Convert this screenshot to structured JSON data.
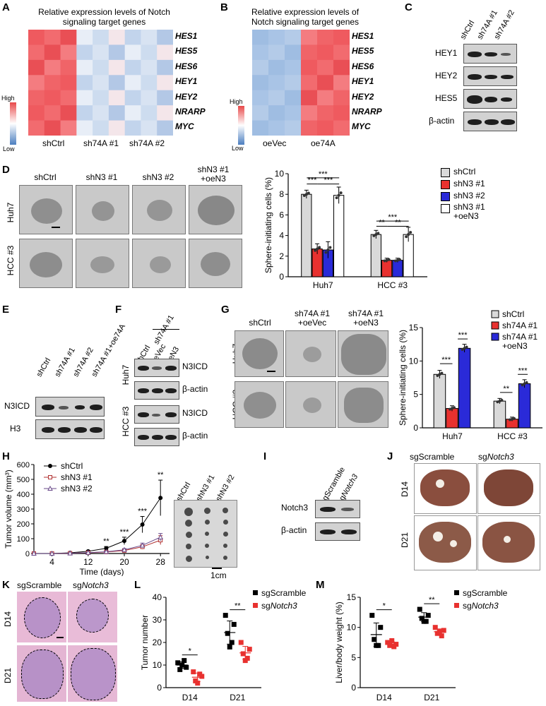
{
  "panels": {
    "A": {
      "label": "A",
      "title_line1": "Relative expression levels of Notch",
      "title_line2": "signaling target genes",
      "genes": [
        "HES1",
        "HES5",
        "HES6",
        "HEY1",
        "HEY2",
        "NRARP",
        "MYC"
      ],
      "groups": [
        "shCtrl",
        "sh74A #1",
        "sh74A #2"
      ],
      "legend_high": "High",
      "legend_low": "Low"
    },
    "B": {
      "label": "B",
      "title_line1": "Relative expression levels of",
      "title_line2": "Notch signaling target genes",
      "genes": [
        "HES1",
        "HES5",
        "HES6",
        "HEY1",
        "HEY2",
        "NRARP",
        "MYC"
      ],
      "groups": [
        "oeVec",
        "oe74A"
      ],
      "legend_high": "High",
      "legend_low": "Low"
    },
    "C": {
      "label": "C",
      "lanes": [
        "shCtrl",
        "sh74A #1",
        "sh74A #2"
      ],
      "rows": [
        "HEY1",
        "HEY2",
        "HES5",
        "β-actin"
      ]
    },
    "D": {
      "label": "D",
      "columns": [
        "shCtrl",
        "shN3 #1",
        "shN3 #2",
        "shN3 #1\n+oeN3"
      ],
      "col3_line1": "shN3 #1",
      "col3_line2": "+oeN3",
      "rows": [
        "Huh7",
        "HCC #3"
      ]
    },
    "E": {
      "label": "E",
      "lanes": [
        "shCtrl",
        "sh74A #1",
        "sh74A #2",
        "sh74A #1+oe74A"
      ],
      "rows": [
        "N3ICD",
        "H3"
      ]
    },
    "F": {
      "label": "F",
      "top": "sh74A #1",
      "lanes": [
        "shCtrl",
        "oeVec",
        "oeN3"
      ],
      "rows": [
        "N3ICD",
        "β-actin",
        "N3ICD",
        "β-actin"
      ],
      "cells": [
        "Huh7",
        "HCC #3"
      ]
    },
    "G": {
      "label": "G",
      "columns": [
        "shCtrl",
        "sh74A #1",
        "sh74A #1"
      ],
      "col_sub": [
        "",
        "+oeVec",
        "+oeN3"
      ],
      "rows": [
        "Huh7",
        "HCC #3"
      ]
    },
    "H": {
      "label": "H",
      "lanes": [
        "shCtrl",
        "shN3 #1",
        "shN3 #2"
      ],
      "scale": "1cm"
    },
    "I": {
      "label": "I",
      "lanes": [
        "sgScramble",
        "sgNotch3"
      ],
      "lane2_prefix": "sg",
      "lane2_italic": "Notch3",
      "rows": [
        "Notch3",
        "β-actin"
      ]
    },
    "J": {
      "label": "J",
      "col1": "sgScramble",
      "col2_prefix": "sg",
      "col2_italic": "Notch3",
      "rows": [
        "D14",
        "D21"
      ]
    },
    "K": {
      "label": "K",
      "col1": "sgScramble",
      "col2_prefix": "sg",
      "col2_italic": "Notch3",
      "rows": [
        "D14",
        "D21"
      ]
    },
    "L": {
      "label": "L"
    },
    "M": {
      "label": "M"
    }
  },
  "chart_data": [
    {
      "id": "D",
      "type": "bar",
      "ylabel": "Sphere-initiating cells (%)",
      "ylim": [
        0,
        10
      ],
      "yticks": [
        0,
        2,
        4,
        6,
        8,
        10
      ],
      "categories": [
        "Huh7",
        "HCC #3"
      ],
      "series": [
        {
          "name": "shCtrl",
          "color": "#d9d9d9",
          "values": [
            8.0,
            4.1
          ],
          "errors": [
            0.4,
            0.4
          ]
        },
        {
          "name": "shN3 #1",
          "color": "#e8312f",
          "values": [
            2.7,
            1.6
          ],
          "errors": [
            0.5,
            0.2
          ]
        },
        {
          "name": "shN3 #2",
          "color": "#2a2ad8",
          "values": [
            2.6,
            1.6
          ],
          "errors": [
            0.8,
            0.2
          ]
        },
        {
          "name": "shN3 #1\n+oeN3",
          "color": "#ffffff",
          "values": [
            7.9,
            4.1
          ],
          "errors": [
            0.8,
            0.7
          ]
        }
      ],
      "legend": [
        "shCtrl",
        "shN3 #1",
        "shN3 #2",
        "shN3 #1",
        "+oeN3"
      ],
      "significance": [
        "***",
        "***",
        "***",
        "***",
        "**",
        "**"
      ]
    },
    {
      "id": "G",
      "type": "bar",
      "ylabel": "Sphere-initiating cells (%)",
      "ylim": [
        0,
        15
      ],
      "yticks": [
        0,
        5,
        10,
        15
      ],
      "categories": [
        "Huh7",
        "HCC #3"
      ],
      "series": [
        {
          "name": "shCtrl",
          "color": "#d9d9d9",
          "values": [
            8.0,
            4.0
          ],
          "errors": [
            0.6,
            0.4
          ]
        },
        {
          "name": "sh74A #1",
          "color": "#e8312f",
          "values": [
            2.9,
            1.3
          ],
          "errors": [
            0.4,
            0.3
          ]
        },
        {
          "name": "sh74A #1\n+oeN3",
          "color": "#2a2ad8",
          "values": [
            11.9,
            6.6
          ],
          "errors": [
            0.6,
            0.6
          ]
        }
      ],
      "legend": [
        "shCtrl",
        "sh74A #1",
        "sh74A #1",
        "+oeN3"
      ],
      "significance": [
        "***",
        "***",
        "**",
        "***"
      ]
    },
    {
      "id": "H",
      "type": "line",
      "xlabel": "Time (days)",
      "ylabel": "Tumor volume (mm³)",
      "xticks": [
        4,
        12,
        20,
        28
      ],
      "yticks": [
        0,
        100,
        200,
        300,
        400,
        500,
        600
      ],
      "ylim": [
        0,
        600
      ],
      "xlim": [
        0,
        30
      ],
      "x": [
        0,
        4,
        8,
        12,
        16,
        20,
        24,
        28
      ],
      "series": [
        {
          "name": "shCtrl",
          "values": [
            0,
            0,
            5,
            15,
            35,
            85,
            195,
            375
          ],
          "errors": [
            0,
            0,
            3,
            6,
            12,
            25,
            55,
            120
          ]
        },
        {
          "name": "shN3 #1",
          "values": [
            0,
            0,
            2,
            5,
            10,
            20,
            45,
            90
          ],
          "errors": [
            0,
            0,
            1,
            2,
            4,
            8,
            15,
            30
          ]
        },
        {
          "name": "shN3 #2",
          "values": [
            0,
            0,
            2,
            6,
            12,
            25,
            55,
            110
          ],
          "errors": [
            0,
            0,
            1,
            2,
            4,
            8,
            15,
            25
          ]
        }
      ],
      "significance": [
        "**",
        "***",
        "***",
        "**"
      ]
    },
    {
      "id": "L",
      "type": "scatter",
      "ylabel": "Tumor number",
      "ylim": [
        0,
        40
      ],
      "yticks": [
        0,
        10,
        20,
        30,
        40
      ],
      "categories": [
        "D14",
        "D21"
      ],
      "series": [
        {
          "name": "sgScramble",
          "values": [
            [
              11,
              9,
              8,
              12,
              10
            ],
            [
              32,
              28,
              24,
              20,
              18
            ]
          ]
        },
        {
          "name": "sgNotch3",
          "values": [
            [
              7,
              5,
              3,
              6,
              2
            ],
            [
              20,
              17,
              15,
              13,
              12
            ]
          ]
        }
      ],
      "significance": [
        "*",
        "**"
      ]
    },
    {
      "id": "M",
      "type": "scatter",
      "ylabel": "Liver/body weight (%)",
      "ylim": [
        0,
        15
      ],
      "yticks": [
        0,
        5,
        10,
        15
      ],
      "categories": [
        "D14",
        "D21"
      ],
      "series": [
        {
          "name": "sgScramble",
          "values": [
            [
              12,
              10,
              8,
              7,
              7
            ],
            [
              13,
              12,
              11.5,
              11,
              11
            ]
          ]
        },
        {
          "name": "sgNotch3",
          "values": [
            [
              7.5,
              7.2,
              7,
              6.8,
              7.8
            ],
            [
              10,
              9.5,
              9,
              8.6,
              9.3
            ]
          ]
        }
      ],
      "significance": [
        "*",
        "**"
      ]
    }
  ]
}
